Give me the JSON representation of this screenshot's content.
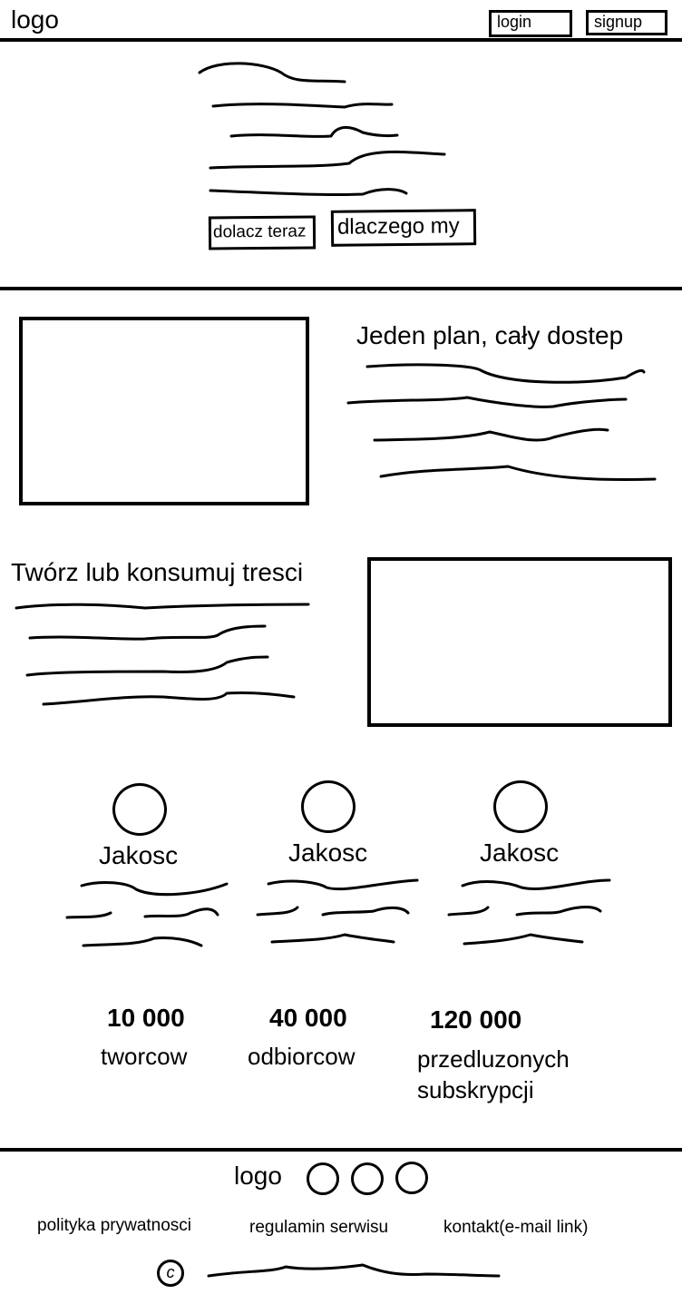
{
  "header": {
    "logo": "logo",
    "login_label": "login",
    "signup_label": "signup"
  },
  "hero": {
    "join_button": "dolacz teraz",
    "why_button": "dlaczego my"
  },
  "plan_section": {
    "heading": "Jeden plan, cały dostep"
  },
  "create_section": {
    "heading": "Twórz lub konsumuj tresci"
  },
  "features": [
    {
      "title": "Jakosc"
    },
    {
      "title": "Jakosc"
    },
    {
      "title": "Jakosc"
    }
  ],
  "stats": [
    {
      "value": "10 000",
      "label": "tworcow"
    },
    {
      "value": "40 000",
      "label": "odbiorcow"
    },
    {
      "value": "120 000",
      "label": "przedluzonych subskrypcji"
    }
  ],
  "footer": {
    "logo": "logo",
    "links": [
      "polityka prywatnosci",
      "regulamin serwisu",
      "kontakt(e-mail link)"
    ],
    "copyright_symbol": "c"
  }
}
